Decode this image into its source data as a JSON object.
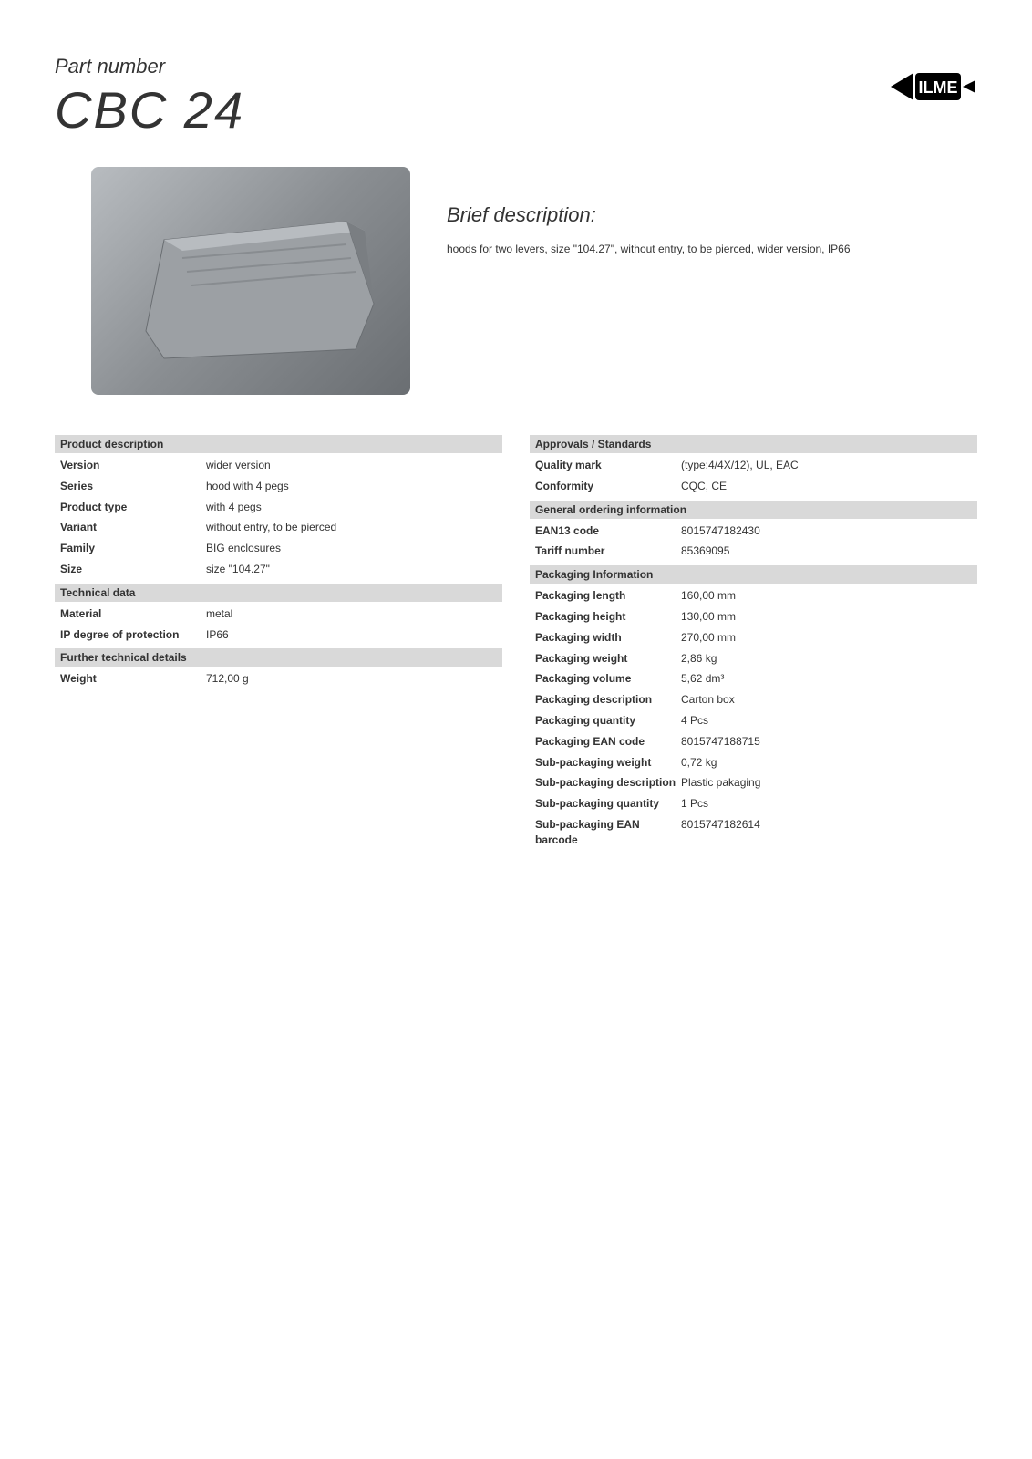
{
  "header": {
    "part_number_label": "Part number",
    "part_number_value": "CBC 24"
  },
  "brief": {
    "title": "Brief description:",
    "text": "hoods for two levers, size \"104.27\", without entry, to be pierced, wider version, IP66"
  },
  "left_column": {
    "sections": [
      {
        "title": "Product description",
        "rows": [
          {
            "label": "Version",
            "value": "wider version"
          },
          {
            "label": "Series",
            "value": "hood with 4 pegs"
          },
          {
            "label": "Product type",
            "value": "with 4 pegs"
          },
          {
            "label": "Variant",
            "value": "without entry, to be pierced"
          },
          {
            "label": "Family",
            "value": "BIG enclosures"
          },
          {
            "label": "Size",
            "value": "size \"104.27\""
          }
        ]
      },
      {
        "title": "Technical data",
        "rows": [
          {
            "label": "Material",
            "value": "metal"
          },
          {
            "label": "IP degree of protection",
            "value": "IP66"
          }
        ]
      },
      {
        "title": "Further technical details",
        "rows": [
          {
            "label": "Weight",
            "value": "712,00 g"
          }
        ]
      }
    ]
  },
  "right_column": {
    "sections": [
      {
        "title": "Approvals / Standards",
        "rows": [
          {
            "label": "Quality mark",
            "value": "(type:4/4X/12), UL, EAC"
          },
          {
            "label": "Conformity",
            "value": "CQC, CE"
          }
        ]
      },
      {
        "title": "General ordering information",
        "rows": [
          {
            "label": "EAN13 code",
            "value": "8015747182430"
          },
          {
            "label": "Tariff number",
            "value": "85369095"
          }
        ]
      },
      {
        "title": "Packaging Information",
        "rows": [
          {
            "label": "Packaging length",
            "value": "160,00 mm"
          },
          {
            "label": "Packaging height",
            "value": "130,00 mm"
          },
          {
            "label": "Packaging width",
            "value": "270,00 mm"
          },
          {
            "label": "Packaging weight",
            "value": "2,86 kg"
          },
          {
            "label": "Packaging volume",
            "value": "5,62 dm³"
          },
          {
            "label": "Packaging description",
            "value": "Carton box"
          },
          {
            "label": "Packaging quantity",
            "value": "4 Pcs"
          },
          {
            "label": "Packaging EAN code",
            "value": "8015747188715"
          },
          {
            "label": "Sub-packaging weight",
            "value": "0,72 kg"
          },
          {
            "label": "Sub-packaging description",
            "value": "Plastic pakaging"
          },
          {
            "label": "Sub-packaging quantity",
            "value": "1 Pcs"
          },
          {
            "label": "Sub-packaging EAN barcode",
            "value": "8015747182614"
          }
        ]
      }
    ]
  },
  "colors": {
    "background": "#ffffff",
    "text": "#333333",
    "section_header_bg": "#d9d9d9"
  }
}
